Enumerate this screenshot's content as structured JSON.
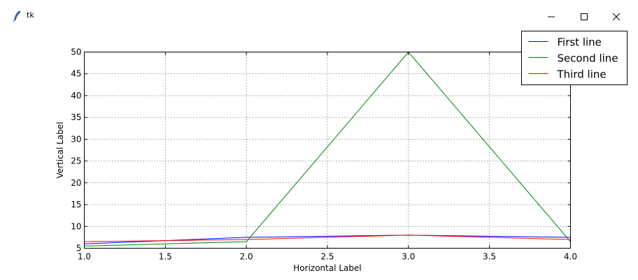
{
  "window": {
    "title": "tk",
    "icons": {
      "app": "feather-icon",
      "minimize": "minimize-icon",
      "maximize": "maximize-icon",
      "close": "close-icon"
    }
  },
  "chart_data": {
    "type": "line",
    "title": "",
    "xlabel": "Horizontal Label",
    "ylabel": "Vertical Label",
    "xlim": [
      1.0,
      4.0
    ],
    "ylim": [
      5,
      50
    ],
    "xticks": [
      "1.0",
      "1.5",
      "2.0",
      "2.5",
      "3.0",
      "3.5",
      "4.0"
    ],
    "yticks": [
      "5",
      "10",
      "15",
      "20",
      "25",
      "30",
      "35",
      "40",
      "45",
      "50"
    ],
    "grid": true,
    "legend_position": "top-right",
    "x": [
      1,
      2,
      3,
      4
    ],
    "series": [
      {
        "name": "First line",
        "values": [
          6,
          7.5,
          8,
          7.5
        ],
        "color": "#0000ff"
      },
      {
        "name": "Second line",
        "values": [
          5.5,
          6.5,
          50,
          6.5
        ],
        "color": "#007f00"
      },
      {
        "name": "Third line",
        "values": [
          6.5,
          7,
          8,
          7
        ],
        "color": "#ff0000"
      }
    ]
  }
}
